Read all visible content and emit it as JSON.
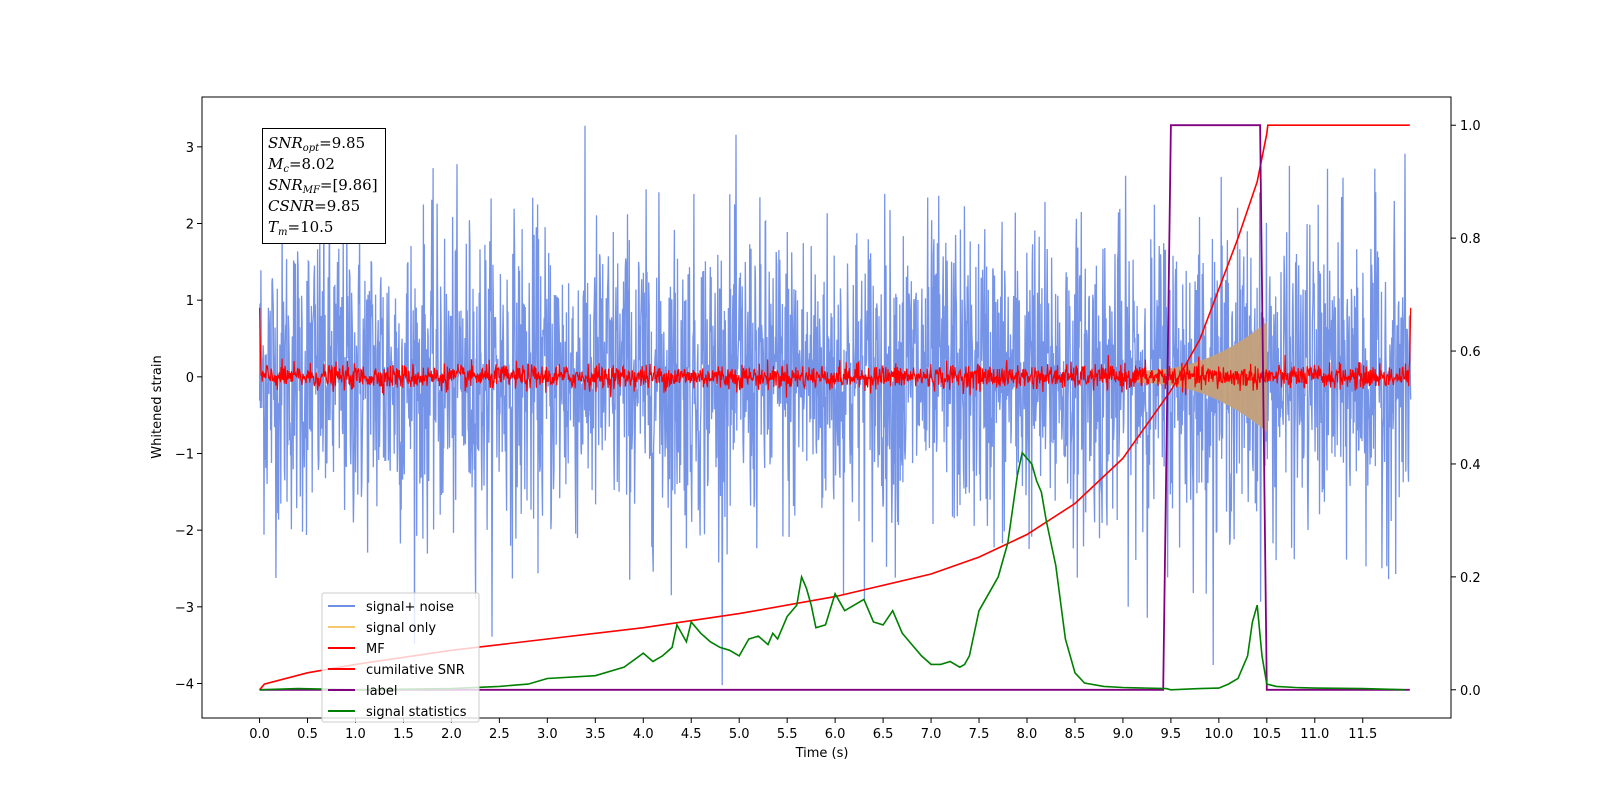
{
  "chart_data": {
    "type": "line",
    "xlabel": "Time (s)",
    "ylabel": "Whitened strain",
    "xlim": [
      -0.6,
      12.42
    ],
    "ylim": [
      -4.45,
      3.65
    ],
    "y2lim": [
      -0.05,
      1.05
    ],
    "xticks": [
      0.0,
      0.5,
      1.0,
      1.5,
      2.0,
      2.5,
      3.0,
      3.5,
      4.0,
      4.5,
      5.0,
      5.5,
      6.0,
      6.5,
      7.0,
      7.5,
      8.0,
      8.5,
      9.0,
      9.5,
      10.0,
      10.5,
      11.0,
      11.5
    ],
    "xtick_labels": [
      "0.0",
      "0.5",
      "1.0",
      "1.5",
      "2.0",
      "2.5",
      "3.0",
      "3.5",
      "4.0",
      "4.5",
      "5.0",
      "5.5",
      "6.0",
      "6.5",
      "7.0",
      "7.5",
      "8.0",
      "8.5",
      "9.0",
      "9.5",
      "10.0",
      "10.5",
      "11.0",
      "11.5"
    ],
    "yticks": [
      -4,
      -3,
      -2,
      -1,
      0,
      1,
      2,
      3
    ],
    "ytick_labels": [
      "−4",
      "−3",
      "−2",
      "−1",
      "0",
      "1",
      "2",
      "3"
    ],
    "y2ticks": [
      0.0,
      0.2,
      0.4,
      0.6,
      0.8,
      1.0
    ],
    "y2tick_labels": [
      "0.0",
      "0.2",
      "0.4",
      "0.6",
      "0.8",
      "1.0"
    ],
    "grid": false,
    "legend_position": "lower-left",
    "info_box": {
      "snr_opt": "=9.85",
      "mc": "=8.02",
      "snr_mf": "=[9.86]",
      "csnr": "=9.85",
      "tm": "=10.5"
    },
    "series": [
      {
        "name": "signal+ noise",
        "axis": "left",
        "color": "#6f8ee6",
        "description_of_values": "white noise, std about 1.0, peaks near +3.3 and -4.1, over t in [0, 12]",
        "x_range": [
          0,
          12
        ],
        "std": 1.0
      },
      {
        "name": "signal only",
        "axis": "left",
        "color": "#f5c870",
        "x_range": [
          9.15,
          10.5
        ],
        "envelope_peak": 0.85
      },
      {
        "name": "MF",
        "axis": "left",
        "color": "#ff0000",
        "x_range": [
          0,
          12
        ],
        "std": 0.08
      },
      {
        "name": "cumilative SNR",
        "axis": "right",
        "color": "#ff0000",
        "x": [
          0.0,
          0.05,
          0.5,
          1.0,
          2.0,
          3.0,
          4.0,
          5.0,
          6.0,
          7.0,
          7.5,
          8.0,
          8.5,
          9.0,
          9.5,
          9.8,
          10.0,
          10.2,
          10.4,
          10.5,
          10.51,
          11.0,
          11.5,
          11.99
        ],
        "values": [
          0.0,
          0.01,
          0.03,
          0.045,
          0.07,
          0.09,
          0.11,
          0.135,
          0.165,
          0.205,
          0.235,
          0.275,
          0.33,
          0.41,
          0.53,
          0.62,
          0.71,
          0.8,
          0.9,
          0.985,
          1.0,
          1.0,
          1.0,
          1.0
        ]
      },
      {
        "name": "label",
        "axis": "right",
        "color": "#800080",
        "x": [
          0.0,
          9.42,
          9.5,
          10.43,
          10.5,
          11.99
        ],
        "values": [
          0.0,
          0.0,
          1.0,
          1.0,
          0.0,
          0.0
        ]
      },
      {
        "name": "signal statistics",
        "axis": "right",
        "color": "#008000",
        "x": [
          0.0,
          0.4,
          1.0,
          1.5,
          2.0,
          2.5,
          2.8,
          3.0,
          3.5,
          3.8,
          4.0,
          4.1,
          4.2,
          4.3,
          4.35,
          4.45,
          4.5,
          4.6,
          4.7,
          4.8,
          4.9,
          5.0,
          5.1,
          5.2,
          5.3,
          5.35,
          5.4,
          5.5,
          5.6,
          5.65,
          5.7,
          5.75,
          5.8,
          5.9,
          6.0,
          6.1,
          6.2,
          6.3,
          6.4,
          6.5,
          6.6,
          6.7,
          6.8,
          6.9,
          7.0,
          7.1,
          7.2,
          7.3,
          7.35,
          7.4,
          7.5,
          7.6,
          7.7,
          7.8,
          7.9,
          7.95,
          8.0,
          8.05,
          8.1,
          8.15,
          8.2,
          8.3,
          8.4,
          8.5,
          8.6,
          8.8,
          9.0,
          9.45,
          9.5,
          9.8,
          10.0,
          10.1,
          10.2,
          10.3,
          10.35,
          10.4,
          10.45,
          10.5,
          10.6,
          10.8,
          11.0,
          11.5,
          11.95
        ],
        "values": [
          0.0,
          0.002,
          0.0,
          0.001,
          0.002,
          0.006,
          0.01,
          0.02,
          0.025,
          0.04,
          0.065,
          0.05,
          0.06,
          0.075,
          0.115,
          0.085,
          0.12,
          0.1,
          0.085,
          0.075,
          0.07,
          0.06,
          0.09,
          0.095,
          0.08,
          0.1,
          0.09,
          0.13,
          0.15,
          0.2,
          0.18,
          0.15,
          0.11,
          0.115,
          0.17,
          0.14,
          0.15,
          0.16,
          0.12,
          0.115,
          0.14,
          0.1,
          0.08,
          0.06,
          0.045,
          0.045,
          0.05,
          0.04,
          0.045,
          0.06,
          0.14,
          0.17,
          0.2,
          0.26,
          0.38,
          0.42,
          0.41,
          0.4,
          0.37,
          0.35,
          0.3,
          0.22,
          0.09,
          0.03,
          0.012,
          0.006,
          0.004,
          0.002,
          0.0,
          0.002,
          0.003,
          0.01,
          0.02,
          0.06,
          0.12,
          0.15,
          0.06,
          0.01,
          0.006,
          0.004,
          0.003,
          0.002,
          0.0
        ]
      }
    ]
  }
}
